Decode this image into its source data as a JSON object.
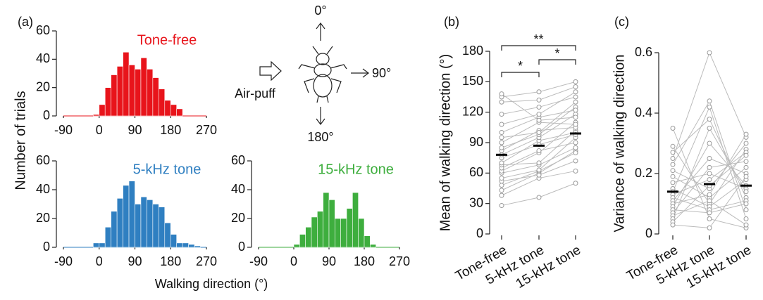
{
  "chart_data": [
    {
      "type": "histogram",
      "panel": "(a)",
      "title": "Tone-free",
      "color": "#e8141b",
      "ylabel": "Number of trials",
      "bins": [
        -15,
        0,
        15,
        30,
        45,
        60,
        75,
        90,
        105,
        120,
        135,
        150,
        165,
        180,
        195,
        210
      ],
      "values": [
        1,
        8,
        20,
        29,
        35,
        45,
        36,
        33,
        41,
        33,
        27,
        19,
        11,
        8,
        5
      ],
      "xlim": [
        -90,
        270
      ],
      "xticks": [
        -90,
        0,
        90,
        180,
        270
      ],
      "ylim": [
        0,
        60
      ],
      "yticks": [
        0,
        20,
        40,
        60
      ]
    },
    {
      "type": "histogram",
      "title": "5-kHz tone",
      "color": "#2f7fc1",
      "xlabel": "Walking direction (°)",
      "bins": [
        -15,
        0,
        15,
        30,
        45,
        60,
        75,
        90,
        105,
        120,
        135,
        150,
        165,
        180,
        195,
        210,
        225,
        240,
        255
      ],
      "values": [
        3,
        3,
        14,
        25,
        34,
        43,
        46,
        30,
        35,
        33,
        30,
        28,
        17,
        9,
        3,
        3,
        2,
        1
      ],
      "xlim": [
        -90,
        270
      ],
      "xticks": [
        -90,
        0,
        90,
        180,
        270
      ],
      "ylim": [
        0,
        60
      ],
      "yticks": [
        0,
        20,
        40,
        60
      ]
    },
    {
      "type": "histogram",
      "title": "15-kHz tone",
      "color": "#3eae3e",
      "bins": [
        0,
        15,
        30,
        45,
        60,
        75,
        90,
        105,
        120,
        135,
        150,
        165,
        180,
        195,
        210
      ],
      "values": [
        2,
        9,
        14,
        21,
        25,
        38,
        33,
        20,
        20,
        27,
        38,
        20,
        8,
        2
      ],
      "xlim": [
        -90,
        270
      ],
      "xticks": [
        -90,
        0,
        90,
        180,
        270
      ],
      "ylim": [
        0,
        60
      ],
      "yticks": [
        0,
        20,
        40,
        60
      ]
    },
    {
      "type": "paired",
      "panel": "(b)",
      "ylabel": "Mean of walking direction (°)",
      "color": "#bbbbbb",
      "mean_color": "#000000",
      "categories": [
        "Tone-free",
        "5-kHz tone",
        "15-kHz tone"
      ],
      "series": [
        {
          "values": [
            28,
            36,
            50
          ]
        },
        {
          "values": [
            38,
            55,
            62
          ]
        },
        {
          "values": [
            43,
            60,
            82
          ]
        },
        {
          "values": [
            48,
            62,
            80
          ]
        },
        {
          "values": [
            52,
            58,
            72
          ]
        },
        {
          "values": [
            55,
            63,
            95
          ]
        },
        {
          "values": [
            60,
            68,
            85
          ]
        },
        {
          "values": [
            62,
            80,
            110
          ]
        },
        {
          "values": [
            65,
            82,
            90
          ]
        },
        {
          "values": [
            68,
            70,
            102
          ]
        },
        {
          "values": [
            70,
            92,
            100
          ]
        },
        {
          "values": [
            75,
            88,
            98
          ]
        },
        {
          "values": [
            78,
            95,
            118
          ]
        },
        {
          "values": [
            82,
            102,
            105
          ]
        },
        {
          "values": [
            85,
            98,
            125
          ]
        },
        {
          "values": [
            90,
            110,
            108
          ]
        },
        {
          "values": [
            95,
            100,
            130
          ]
        },
        {
          "values": [
            100,
            115,
            122
          ]
        },
        {
          "values": [
            108,
            118,
            140
          ]
        },
        {
          "values": [
            118,
            125,
            135
          ]
        },
        {
          "values": [
            130,
            132,
            145
          ]
        },
        {
          "values": [
            135,
            140,
            150
          ]
        },
        {
          "values": [
            138,
            112,
            115
          ]
        }
      ],
      "means": [
        78,
        87,
        99
      ],
      "annotations": [
        {
          "text": "*",
          "between": [
            0,
            1
          ]
        },
        {
          "text": "*",
          "between": [
            1,
            2
          ]
        },
        {
          "text": "**",
          "between": [
            0,
            2
          ]
        }
      ],
      "ylim": [
        0,
        180
      ],
      "yticks": [
        0,
        30,
        60,
        90,
        120,
        150,
        180
      ]
    },
    {
      "type": "paired",
      "panel": "(c)",
      "ylabel": "Variance of walking direction",
      "color": "#bbbbbb",
      "mean_color": "#000000",
      "categories": [
        "Tone-free",
        "5-kHz tone",
        "15-kHz tone"
      ],
      "series": [
        {
          "values": [
            0.35,
            0.05,
            0.02
          ]
        },
        {
          "values": [
            0.29,
            0.1,
            0.28
          ]
        },
        {
          "values": [
            0.27,
            0.38,
            0.12
          ]
        },
        {
          "values": [
            0.25,
            0.6,
            0.32
          ]
        },
        {
          "values": [
            0.23,
            0.44,
            0.08
          ]
        },
        {
          "values": [
            0.21,
            0.15,
            0.3
          ]
        },
        {
          "values": [
            0.19,
            0.12,
            0.22
          ]
        },
        {
          "values": [
            0.17,
            0.2,
            0.15
          ]
        },
        {
          "values": [
            0.15,
            0.09,
            0.18
          ]
        },
        {
          "values": [
            0.14,
            0.42,
            0.05
          ]
        },
        {
          "values": [
            0.13,
            0.18,
            0.27
          ]
        },
        {
          "values": [
            0.12,
            0.08,
            0.11
          ]
        },
        {
          "values": [
            0.11,
            0.25,
            0.2
          ]
        },
        {
          "values": [
            0.1,
            0.13,
            0.33
          ]
        },
        {
          "values": [
            0.09,
            0.3,
            0.16
          ]
        },
        {
          "values": [
            0.08,
            0.07,
            0.1
          ]
        },
        {
          "values": [
            0.07,
            0.22,
            0.24
          ]
        },
        {
          "values": [
            0.06,
            0.11,
            0.03
          ]
        },
        {
          "values": [
            0.05,
            0.35,
            0.14
          ]
        },
        {
          "values": [
            0.04,
            0.16,
            0.26
          ]
        },
        {
          "values": [
            0.03,
            0.02,
            0.19
          ]
        }
      ],
      "means": [
        0.14,
        0.165,
        0.16
      ],
      "ylim": [
        0,
        0.6
      ],
      "yticks": [
        0,
        0.2,
        0.4,
        0.6
      ]
    }
  ],
  "diagram": {
    "up": "0°",
    "right": "90°",
    "down": "180°",
    "stimulus": "Air-puff"
  }
}
